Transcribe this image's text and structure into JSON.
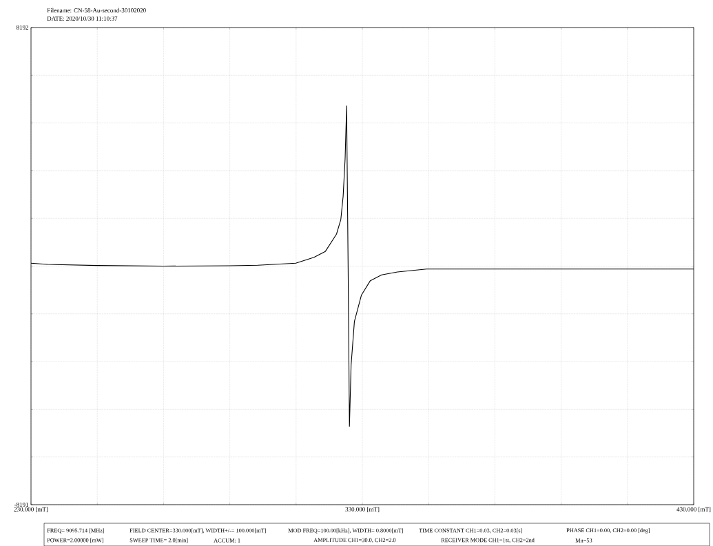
{
  "chart_data": {
    "type": "line",
    "title": "Filename: CN-58-Au-second-30102020",
    "subtitle": "DATE: 2020/10/30 11:10:37",
    "annotations": [
      "FREQ= 9095.714 [MHz]",
      "FIELD CENTER=330.000[mT], WIDTH+/-= 100.000[mT]",
      "MOD FREQ=100.00[kHz], WIDTH= 0.8000[mT]",
      "TIME CONSTANT CH1=0.03, CH2=0.03[s]",
      "PHASE CH1=0.00, CH2=0.00 [deg]",
      "POWER=2.00000 [mW]",
      "SWEEP TIME= 2.0[min]",
      "ACCUM: 1",
      "AMPLITUDE CH1=30.0, CH2=2.0",
      "RECEIVER MODE CH1=1st, CH2=2nd",
      "Mn=53"
    ],
    "series": [
      {
        "color": "#000000",
        "x": [
          230,
          235,
          250,
          270,
          290,
          298.4,
          309.9,
          315.4,
          318.8,
          322.2,
          323.5,
          324.2,
          324.8,
          325.25,
          325.7,
          326.1,
          326.6,
          327.6,
          329.7,
          332.4,
          335.8,
          340.6,
          349.4,
          360,
          380,
          400,
          420,
          430
        ],
        "values": [
          100,
          60,
          20,
          0,
          10,
          30,
          100,
          300,
          500,
          1100,
          1600,
          2400,
          3700,
          5500,
          0,
          -5500,
          -3400,
          -1900,
          -1000,
          -500,
          -300,
          -200,
          -100,
          -100,
          -100,
          -100,
          -100,
          -100
        ]
      }
    ],
    "xlim": [
      230,
      430
    ],
    "ylim": [
      -8191,
      8192
    ],
    "xticks": [
      {
        "value": 230,
        "label": "230.000 [mT]"
      },
      {
        "value": 250,
        "label": null
      },
      {
        "value": 270,
        "label": null
      },
      {
        "value": 290,
        "label": null
      },
      {
        "value": 310,
        "label": null
      },
      {
        "value": 330,
        "label": "330.000 [mT]"
      },
      {
        "value": 350,
        "label": null
      },
      {
        "value": 370,
        "label": null
      },
      {
        "value": 390,
        "label": null
      },
      {
        "value": 410,
        "label": null
      },
      {
        "value": 430,
        "label": "430.000 [mT]"
      }
    ],
    "yticks": [
      -8191,
      {
        "value": -6553,
        "label": null
      },
      {
        "value": -4915,
        "label": null
      },
      {
        "value": -3276,
        "label": null
      },
      {
        "value": -1638,
        "label": null
      },
      {
        "value": 0,
        "label": null
      },
      {
        "value": 1638,
        "label": null
      },
      {
        "value": 3277,
        "label": null
      },
      {
        "value": 4915,
        "label": null
      },
      {
        "value": 6554,
        "label": null
      },
      8192
    ],
    "grid": true
  }
}
